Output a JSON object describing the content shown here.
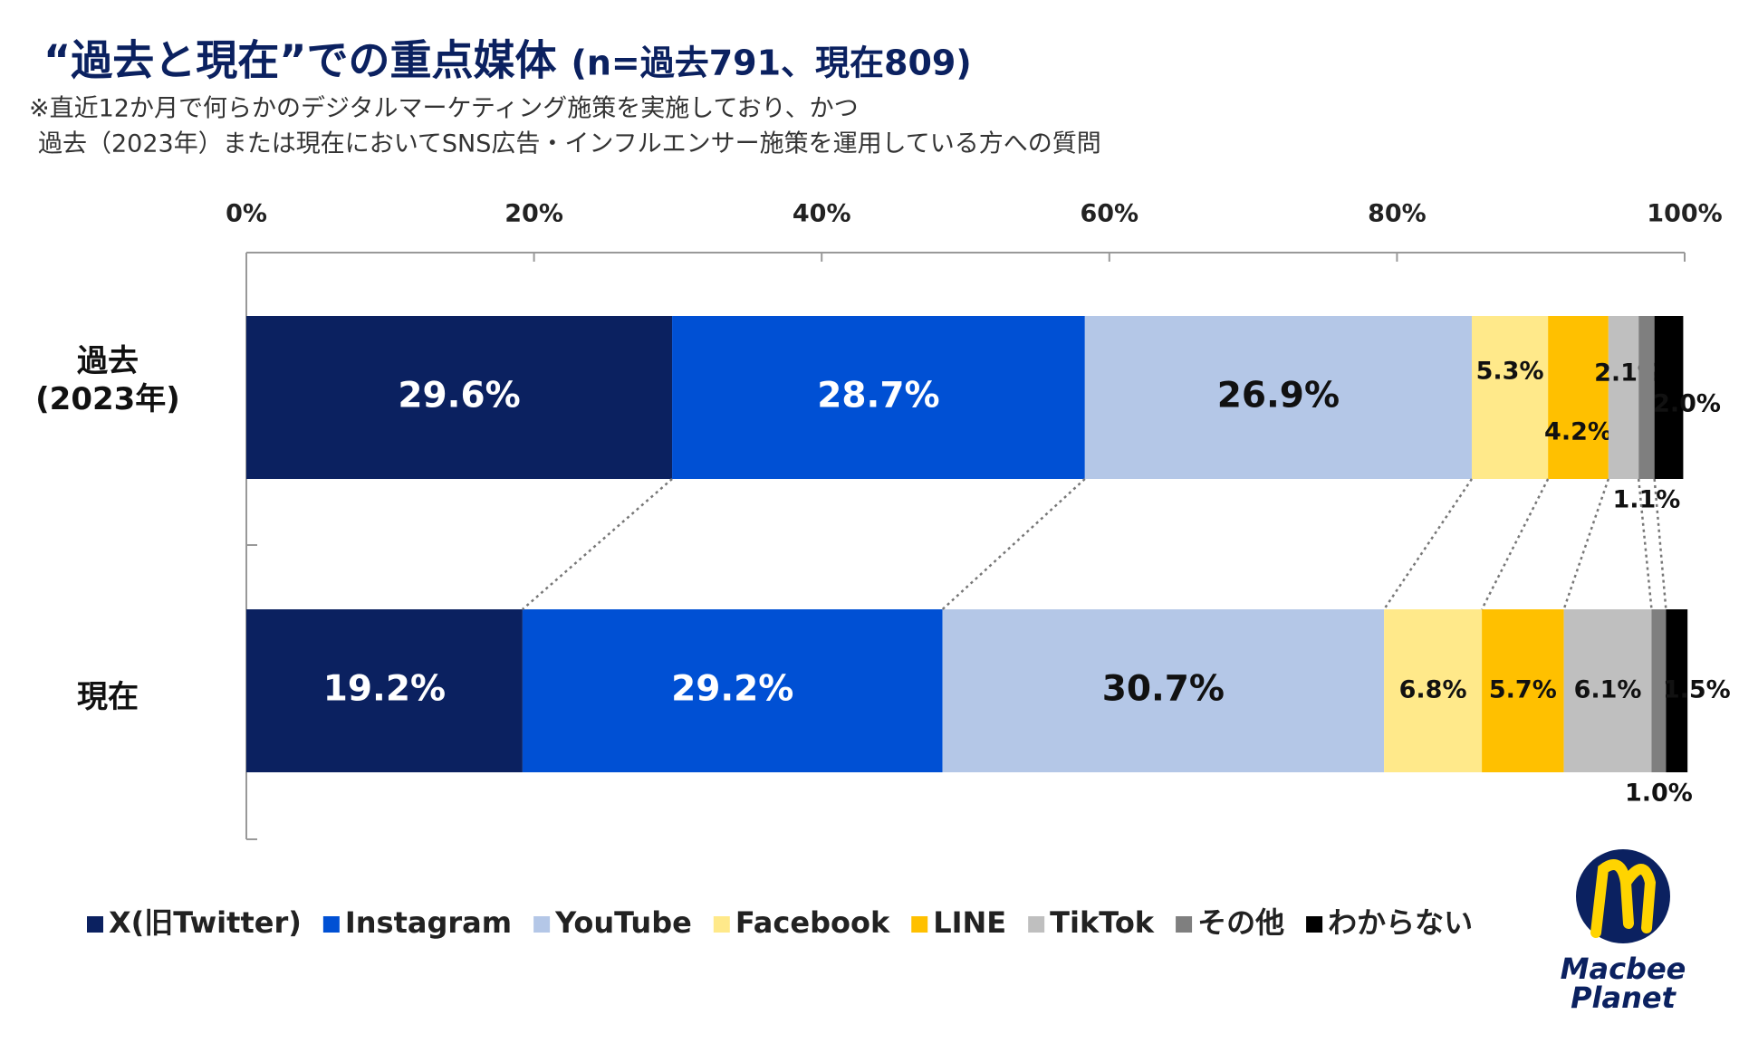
{
  "chart_data": {
    "type": "stacked-barh",
    "title": "“過去と現在”での重点媒体",
    "sample_note": "(n=過去791、現在809)",
    "notes": [
      "※直近12か月で何らかのデジタルマーケティング施策を実施しており、かつ",
      "過去（2023年）または現在においてSNS広告・インフルエンサー施策を運用している方への質問"
    ],
    "categories": [
      "過去\n(2023年)",
      "現在"
    ],
    "series": [
      {
        "name": "X(旧Twitter)",
        "color": "#0b2160",
        "values": [
          29.6,
          19.2
        ],
        "value_labels": [
          "29.6%",
          "19.2%"
        ]
      },
      {
        "name": "Instagram",
        "color": "#0050d4",
        "values": [
          28.7,
          29.2
        ],
        "value_labels": [
          "28.7%",
          "29.2%"
        ]
      },
      {
        "name": "YouTube",
        "color": "#b4c7e7",
        "values": [
          26.9,
          30.7
        ],
        "value_labels": [
          "26.9%",
          "30.7%"
        ]
      },
      {
        "name": "Facebook",
        "color": "#ffe98a",
        "values": [
          5.3,
          6.8
        ],
        "value_labels": [
          "5.3%",
          "6.8%"
        ]
      },
      {
        "name": "LINE",
        "color": "#ffc000",
        "values": [
          4.2,
          5.7
        ],
        "value_labels": [
          "4.2%",
          "5.7%"
        ]
      },
      {
        "name": "TikTok",
        "color": "#bfbfbf",
        "values": [
          2.1,
          6.1
        ],
        "value_labels": [
          "2.1%",
          "6.1%"
        ]
      },
      {
        "name": "その他",
        "color": "#7f7f7f",
        "values": [
          1.1,
          1.0
        ],
        "value_labels": [
          "1.1%",
          "1.0%"
        ]
      },
      {
        "name": "わからない",
        "color": "#000000",
        "values": [
          2.0,
          1.5
        ],
        "value_labels": [
          "2.0%",
          "1.5%"
        ]
      }
    ],
    "xlim": [
      0,
      100
    ],
    "xticks": [
      {
        "value": 0,
        "label": "0%"
      },
      {
        "value": 20,
        "label": "20%"
      },
      {
        "value": 40,
        "label": "40%"
      },
      {
        "value": 60,
        "label": "60%"
      },
      {
        "value": 80,
        "label": "80%"
      },
      {
        "value": 100,
        "label": "100%"
      }
    ],
    "legend": "bottom",
    "logo": {
      "line1": "Macbee",
      "line2": "Planet"
    }
  }
}
